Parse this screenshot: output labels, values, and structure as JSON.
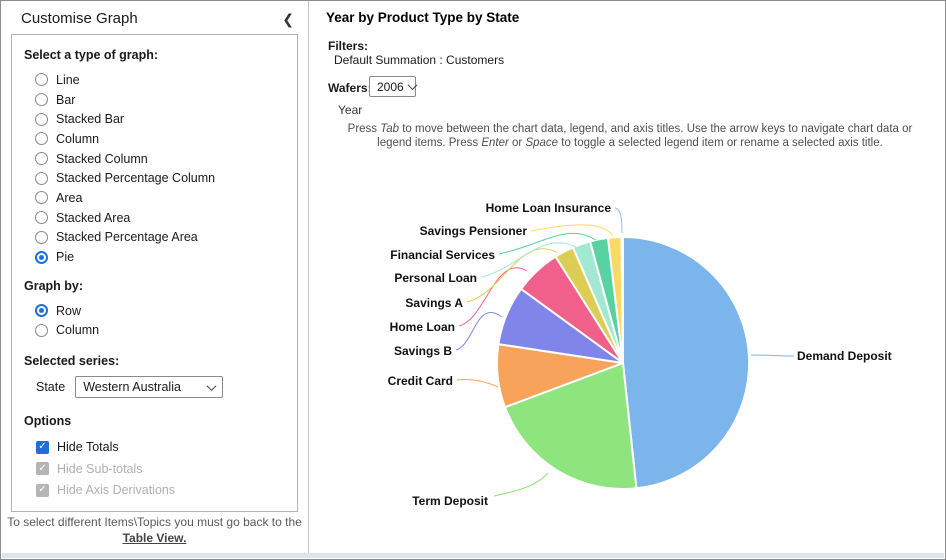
{
  "sidebar": {
    "title": "Customise Graph",
    "graph_type": {
      "label": "Select a type of graph:",
      "options": [
        "Line",
        "Bar",
        "Stacked Bar",
        "Column",
        "Stacked Column",
        "Stacked Percentage Column",
        "Area",
        "Stacked Area",
        "Stacked Percentage Area",
        "Pie"
      ],
      "selected": "Pie"
    },
    "graph_by": {
      "label": "Graph by:",
      "options": [
        "Row",
        "Column"
      ],
      "selected": "Row"
    },
    "selected_series": {
      "label": "Selected series:",
      "field_label": "State",
      "value": "Western Australia"
    },
    "options": {
      "label": "Options",
      "checkboxes": [
        {
          "label": "Hide Totals",
          "checked": true,
          "disabled": false
        },
        {
          "label": "Hide Sub-totals",
          "checked": true,
          "disabled": true
        },
        {
          "label": "Hide Axis Derivations",
          "checked": true,
          "disabled": true
        }
      ]
    },
    "footer_text": "To select different Items\\Topics you must go back to the",
    "footer_link": "Table View."
  },
  "main": {
    "title": "Year by Product Type by State",
    "filters_label": "Filters:",
    "filters_value": "Default Summation : Customers",
    "wafers_label": "Wafers:",
    "wafers_value": "2006",
    "axis_label": "Year",
    "instructions_parts": [
      {
        "text": "Press "
      },
      {
        "text": "Tab",
        "italic": true
      },
      {
        "text": " to move between the chart data, legend, and axis titles. Use the arrow keys to navigate chart data or legend items. Press "
      },
      {
        "text": "Enter",
        "italic": true
      },
      {
        "text": " or "
      },
      {
        "text": "Space",
        "italic": true
      },
      {
        "text": " to toggle a selected legend item or rename a selected axis title."
      }
    ]
  },
  "chart_data": {
    "type": "pie",
    "title": "Year by Product Type by State",
    "value_unit": "percent (estimated from slice angles)",
    "start_angle_deg": 0,
    "direction": "clockwise",
    "legend_position": "labels-around-pie",
    "segments": [
      {
        "label": "Demand Deposit",
        "value": 48.3,
        "color": "#7CB5EC"
      },
      {
        "label": "Term Deposit",
        "value": 21.0,
        "color": "#8EE47D"
      },
      {
        "label": "Credit Card",
        "value": 8.1,
        "color": "#F7A35C"
      },
      {
        "label": "Savings B",
        "value": 7.6,
        "color": "#8085E9"
      },
      {
        "label": "Home Loan",
        "value": 6.0,
        "color": "#F0608A"
      },
      {
        "label": "Savings A",
        "value": 2.5,
        "color": "#DCCE54"
      },
      {
        "label": "Personal Loan",
        "value": 2.3,
        "color": "#A2E8D3"
      },
      {
        "label": "Financial Services",
        "value": 2.3,
        "color": "#59D2A1"
      },
      {
        "label": "Savings Pensioner",
        "value": 1.7,
        "color": "#FBD963"
      },
      {
        "label": "Home Loan Insurance",
        "value": 0.2,
        "color": "#8FC6F2"
      }
    ]
  }
}
